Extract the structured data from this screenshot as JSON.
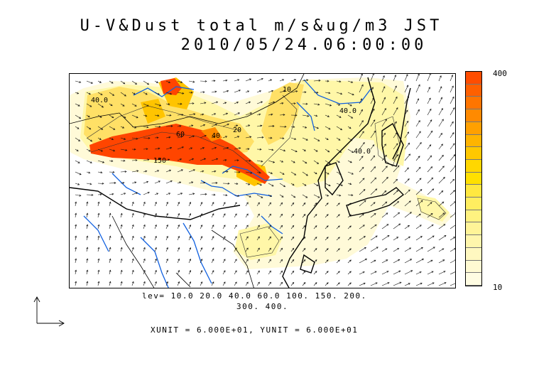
{
  "title": {
    "line1": "U-V&Dust total m/s&ug/m3 JST",
    "line2": "2010/05/24.06:00:00"
  },
  "contour_levels": {
    "line1": "lev= 10.0 20.0 40.0 60.0 100. 150. 200.",
    "line2": "300. 400."
  },
  "units_caption": "XUNIT = 6.000E+01, YUNIT = 6.000E+01",
  "map_labels": [
    "40.0",
    "40.0",
    "40",
    "150",
    "10",
    "60",
    "40.0",
    "20"
  ],
  "colorbar": {
    "max_label": "400",
    "min_label": "10",
    "colors": [
      "#ff4d00",
      "#ff6000",
      "#ff7500",
      "#ff8a00",
      "#ffa000",
      "#ffb400",
      "#ffc800",
      "#ffd700",
      "#ffe000",
      "#ffe840",
      "#ffee60",
      "#fff280",
      "#fff498",
      "#fff6ac",
      "#fff8c0",
      "#fffad2",
      "#fffce2"
    ]
  },
  "colors": {
    "river": "#1060e0",
    "coast": "#000000",
    "dust_high": "#ff4500",
    "dust_mid": "#ffc400",
    "dust_low": "#fff7a8",
    "dust_faint": "#fffad8"
  }
}
